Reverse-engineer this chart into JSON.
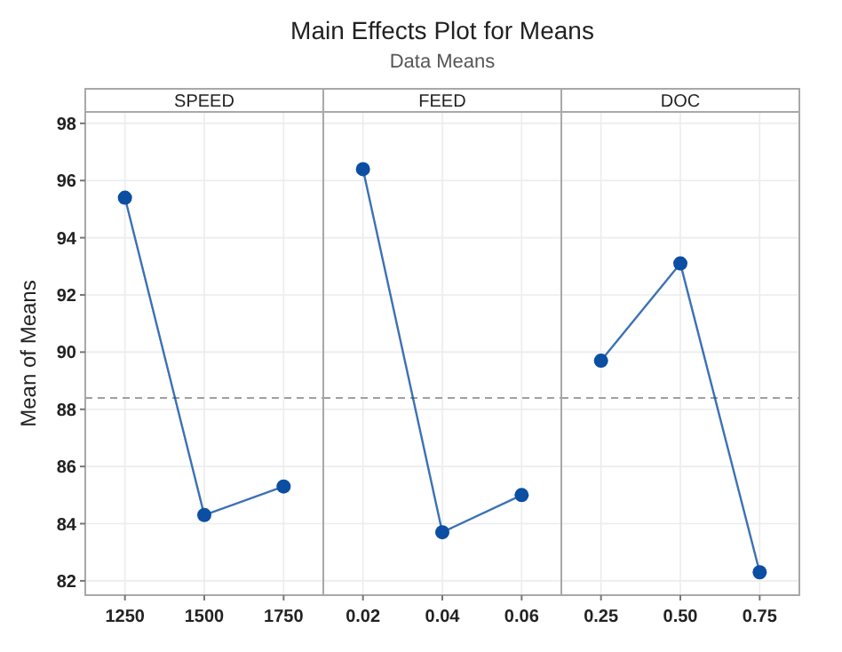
{
  "chart_data": [
    {
      "type": "line",
      "xlabel": "SPEED",
      "ylabel": "Mean of Means",
      "categories": [
        "1250",
        "1500",
        "1750"
      ],
      "series": [
        {
          "color": "#0b4ea2",
          "values": [
            95.4,
            84.3,
            85.3
          ]
        }
      ],
      "ylim": [
        81.5,
        98.4
      ],
      "yticks": [
        82,
        84,
        86,
        88,
        90,
        92,
        94,
        96,
        98
      ],
      "grid": true,
      "marker": "circle",
      "line_style": "solid",
      "ref_lines": [
        {
          "axis": "y",
          "value": 88.4,
          "color": "#a0a0a0",
          "line_style": "dashed"
        }
      ]
    },
    {
      "type": "line",
      "title": "Main Effects Plot for Means",
      "subtitle": "Data Means",
      "xlabel": "FEED",
      "categories": [
        "0.02",
        "0.04",
        "0.06"
      ],
      "series": [
        {
          "color": "#0b4ea2",
          "values": [
            96.4,
            83.7,
            85.0
          ]
        }
      ],
      "ylim": [
        81.5,
        98.4
      ],
      "yticks": [
        82,
        84,
        86,
        88,
        90,
        92,
        94,
        96,
        98
      ],
      "tick_labels": "x",
      "grid": true,
      "marker": "circle",
      "line_style": "solid",
      "ref_lines": [
        {
          "axis": "y",
          "value": 88.4,
          "color": "#a0a0a0",
          "line_style": "dashed"
        }
      ]
    },
    {
      "type": "line",
      "xlabel": "DOC",
      "categories": [
        "0.25",
        "0.50",
        "0.75"
      ],
      "series": [
        {
          "color": "#0b4ea2",
          "values": [
            89.7,
            93.1,
            82.3
          ]
        }
      ],
      "ylim": [
        81.5,
        98.4
      ],
      "yticks": [
        82,
        84,
        86,
        88,
        90,
        92,
        94,
        96,
        98
      ],
      "tick_labels": "x",
      "grid": true,
      "marker": "circle",
      "line_style": "solid",
      "ref_lines": [
        {
          "axis": "y",
          "value": 88.4,
          "color": "#a0a0a0",
          "line_style": "dashed"
        }
      ]
    }
  ]
}
